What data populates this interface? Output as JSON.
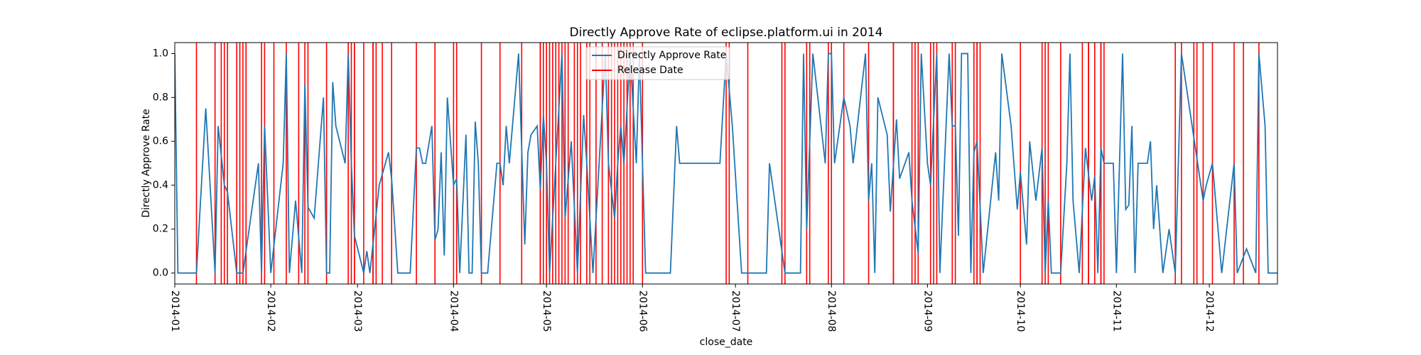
{
  "chart_data": {
    "type": "line",
    "title": "Directly Approve Rate of eclipse.platform.ui in 2014",
    "xlabel": "close_date",
    "ylabel": "Directly Approve Rate",
    "xlim": [
      0,
      356
    ],
    "xticks": [
      {
        "value": 0,
        "label": "2014-01"
      },
      {
        "value": 31,
        "label": "2014-02"
      },
      {
        "value": 59,
        "label": "2014-03"
      },
      {
        "value": 90,
        "label": "2014-04"
      },
      {
        "value": 120,
        "label": "2014-05"
      },
      {
        "value": 151,
        "label": "2014-06"
      },
      {
        "value": 181,
        "label": "2014-07"
      },
      {
        "value": 212,
        "label": "2014-08"
      },
      {
        "value": 243,
        "label": "2014-09"
      },
      {
        "value": 273,
        "label": "2014-10"
      },
      {
        "value": 304,
        "label": "2014-11"
      },
      {
        "value": 334,
        "label": "2014-12"
      }
    ],
    "ylim": [
      -0.05,
      1.05
    ],
    "yticks": [
      {
        "value": 0,
        "label": "0.0"
      },
      0.2,
      0.4,
      0.6,
      0.8,
      {
        "value": 1,
        "label": "1.0"
      }
    ],
    "legend": "upper center",
    "series": [
      {
        "name": "Directly Approve Rate",
        "color": "#1f77b4",
        "kind": "line",
        "x": [
          0,
          1,
          7,
          10,
          13,
          14,
          16,
          17,
          20,
          22,
          27,
          28,
          29,
          31,
          35,
          36,
          37,
          39,
          41,
          42,
          43,
          45,
          48,
          49,
          50,
          51,
          52,
          55,
          56,
          57,
          58,
          61,
          62,
          63,
          66,
          69,
          70,
          72,
          76,
          78,
          79,
          80,
          81,
          83,
          84,
          85,
          86,
          87,
          88,
          90,
          91,
          92,
          94,
          95,
          96,
          97,
          98,
          99,
          101,
          104,
          105,
          106,
          107,
          108,
          111,
          113,
          114,
          115,
          117,
          118,
          119,
          120,
          121,
          125,
          126,
          128,
          130,
          132,
          133,
          135,
          139,
          140,
          142,
          143,
          144,
          145,
          147,
          149,
          150,
          152,
          160,
          162,
          163,
          176,
          178,
          180,
          183,
          191,
          192,
          197,
          202,
          203,
          204,
          206,
          210,
          211,
          212,
          213,
          216,
          218,
          219,
          223,
          224,
          225,
          226,
          227,
          230,
          231,
          233,
          234,
          237,
          238,
          240,
          241,
          243,
          244,
          246,
          247,
          250,
          251,
          252,
          253,
          254,
          256,
          257,
          258,
          259,
          261,
          265,
          266,
          267,
          270,
          272,
          273,
          275,
          276,
          278,
          280,
          281,
          282,
          283,
          286,
          288,
          289,
          290,
          292,
          294,
          296,
          297,
          298,
          299,
          300,
          303,
          304,
          306,
          307,
          308,
          309,
          310,
          311,
          314,
          315,
          316,
          317,
          319,
          321,
          323,
          325,
          332,
          333,
          335,
          338,
          342,
          343,
          346,
          349,
          350,
          352,
          353,
          356
        ],
        "values": [
          1.0,
          0,
          0,
          0.75,
          0,
          0.67,
          0.4,
          0.37,
          0,
          0,
          0.5,
          0,
          0.67,
          0,
          0.5,
          1.0,
          0,
          0.33,
          0,
          0.86,
          0.3,
          0.25,
          0.8,
          0,
          0,
          0.87,
          0.67,
          0.5,
          1.0,
          0.5,
          0.17,
          0,
          0.1,
          0,
          0.4,
          0.55,
          0.43,
          0,
          0,
          0.57,
          0.57,
          0.5,
          0.5,
          0.67,
          0.15,
          0.2,
          0.55,
          0.08,
          0.8,
          0.4,
          0.43,
          0,
          0.63,
          0,
          0,
          0.69,
          0.5,
          0,
          0,
          0.5,
          0.5,
          0.4,
          0.67,
          0.5,
          1.0,
          0.13,
          0.55,
          0.63,
          0.67,
          0.38,
          0.72,
          0.5,
          0,
          1.0,
          0.25,
          0.6,
          0,
          0.72,
          0.5,
          0,
          1.0,
          0.5,
          0.25,
          0.5,
          0.67,
          0.5,
          1.0,
          0.5,
          1.0,
          0,
          0,
          0.67,
          0.5,
          0.5,
          1.0,
          0.67,
          0,
          0,
          0.5,
          0,
          0,
          1.0,
          0.2,
          1.0,
          0.5,
          1.0,
          1.0,
          0.5,
          0.8,
          0.67,
          0.5,
          1.0,
          0.33,
          0.5,
          0,
          0.8,
          0.63,
          0.28,
          0.7,
          0.43,
          0.55,
          0.33,
          0.09,
          1.0,
          0.5,
          0.4,
          1.0,
          0,
          1.0,
          0.67,
          0.67,
          0.17,
          1.0,
          1.0,
          0,
          0.55,
          0.6,
          0,
          0.55,
          0.33,
          1.0,
          0.67,
          0.29,
          0.46,
          0.13,
          0.6,
          0.33,
          0.57,
          0,
          0.33,
          0,
          0,
          0.5,
          1.0,
          0.33,
          0,
          0.57,
          0.33,
          0.44,
          0,
          0.57,
          0.5,
          0.5,
          0,
          1.0,
          0.29,
          0.31,
          0.67,
          0,
          0.5,
          0.5,
          0.6,
          0.2,
          0.4,
          0,
          0.2,
          0,
          1.0,
          0.33,
          0.4,
          0.5,
          0,
          0.5,
          0,
          0.11,
          0,
          1.0,
          0.67,
          0,
          0
        ]
      },
      {
        "name": "Release Date",
        "color": "#ff0000",
        "kind": "vlines",
        "x": [
          7,
          13,
          15,
          16,
          17,
          20,
          21,
          22,
          23,
          23,
          28,
          29,
          32,
          36,
          40,
          42,
          43,
          49,
          56,
          57,
          58,
          58,
          61,
          64,
          64,
          65,
          67,
          70,
          78,
          84,
          90,
          91,
          99,
          105,
          112,
          118,
          118,
          119,
          120,
          121,
          122,
          123,
          124,
          125,
          126,
          127,
          129,
          130,
          131,
          133,
          134,
          136,
          138,
          140,
          141,
          142,
          143,
          144,
          145,
          146,
          147,
          148,
          151,
          178,
          179,
          185,
          196,
          197,
          204,
          205,
          211,
          212,
          216,
          224,
          232,
          232,
          238,
          239,
          240,
          244,
          245,
          246,
          251,
          252,
          258,
          259,
          259,
          260,
          273,
          280,
          281,
          282,
          286,
          293,
          295,
          295,
          297,
          299,
          299,
          300,
          323,
          325,
          329,
          330,
          332,
          335,
          342,
          345,
          350
        ]
      }
    ]
  }
}
